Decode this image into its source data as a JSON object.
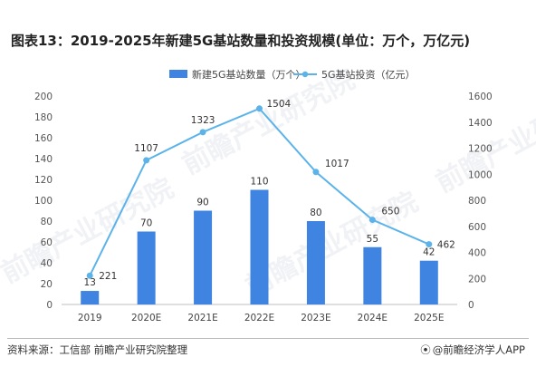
{
  "title": "图表13：2019-2025年新建5G基站数量和投资规模(单位：万个，万亿元)",
  "footer": {
    "source": "资料来源：工信部 前瞻产业研究院整理",
    "brand": "@前瞻经济学人APP"
  },
  "watermark": "前瞻产业研究院",
  "chart_data": {
    "type": "bar",
    "categories": [
      "2019",
      "2020E",
      "2021E",
      "2022E",
      "2023E",
      "2024E",
      "2025E"
    ],
    "series": [
      {
        "name": "新建5G基站数量（万个）",
        "type": "bar",
        "axis": "left",
        "values": [
          13,
          70,
          90,
          110,
          80,
          55,
          42
        ],
        "color": "#3e84e0"
      },
      {
        "name": "5G基站投资（亿元）",
        "type": "line",
        "axis": "right",
        "values": [
          221,
          1107,
          1323,
          1504,
          1017,
          650,
          462
        ],
        "color": "#5cb3ea"
      }
    ],
    "y_left": {
      "min": 0,
      "max": 200,
      "ticks": [
        0,
        20,
        40,
        60,
        80,
        100,
        120,
        140,
        160,
        180,
        200
      ]
    },
    "y_right": {
      "min": 0,
      "max": 1600,
      "ticks": [
        0,
        200,
        400,
        600,
        800,
        1000,
        1200,
        1400,
        1600
      ]
    },
    "legend": "top-center",
    "grid": false
  }
}
